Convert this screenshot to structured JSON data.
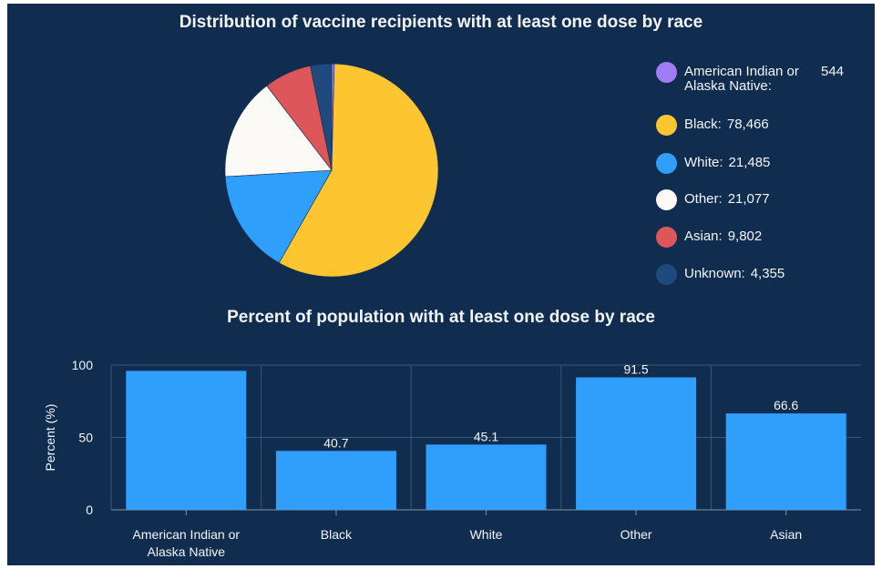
{
  "pie_chart": {
    "title": "Distribution of vaccine recipients with at least one dose by race",
    "legend": [
      {
        "label": "American Indian or Alaska Native:",
        "value_text": "544"
      },
      {
        "label": "Black:",
        "value_text": "78,466"
      },
      {
        "label": "White:",
        "value_text": "21,485"
      },
      {
        "label": "Other:",
        "value_text": "21,077"
      },
      {
        "label": "Asian:",
        "value_text": "9,802"
      },
      {
        "label": "Unknown:",
        "value_text": "4,355"
      }
    ]
  },
  "bar_chart": {
    "title": "Percent of population with at least one dose by race",
    "ylabel": "Percent (%)",
    "yticks": [
      "0",
      "50",
      "100"
    ]
  },
  "colors": {
    "background": "#102d4f",
    "american_indian": "#a07cf5",
    "black": "#fdc630",
    "white": "#2f9ffb",
    "other": "#fbfaf7",
    "asian": "#dd5659",
    "unknown": "#1e4a7d",
    "bar": "#2f9ffb"
  },
  "chart_data": [
    {
      "type": "pie",
      "title": "Distribution of vaccine recipients with at least one dose by race",
      "slices": [
        {
          "label": "American Indian or Alaska Native",
          "value": 544,
          "color": "#a07cf5"
        },
        {
          "label": "Black",
          "value": 78466,
          "color": "#fdc630"
        },
        {
          "label": "White",
          "value": 21485,
          "color": "#2f9ffb"
        },
        {
          "label": "Other",
          "value": 21077,
          "color": "#fbfaf7"
        },
        {
          "label": "Asian",
          "value": 9802,
          "color": "#dd5659"
        },
        {
          "label": "Unknown",
          "value": 4355,
          "color": "#1e4a7d"
        }
      ],
      "legend_position": "right"
    },
    {
      "type": "bar",
      "title": "Percent of population with at least one dose by race",
      "xlabel": "",
      "ylabel": "Percent (%)",
      "categories": [
        "American Indian or\nAlaska Native",
        "Black",
        "White",
        "Other",
        "Asian"
      ],
      "values": [
        96,
        40.7,
        45.1,
        91.5,
        66.6
      ],
      "data_labels": [
        "",
        "40.7",
        "45.1",
        "91.5",
        "66.6"
      ],
      "ylim": [
        0,
        100
      ],
      "yticks": [
        0,
        50,
        100
      ],
      "grid": true
    }
  ]
}
